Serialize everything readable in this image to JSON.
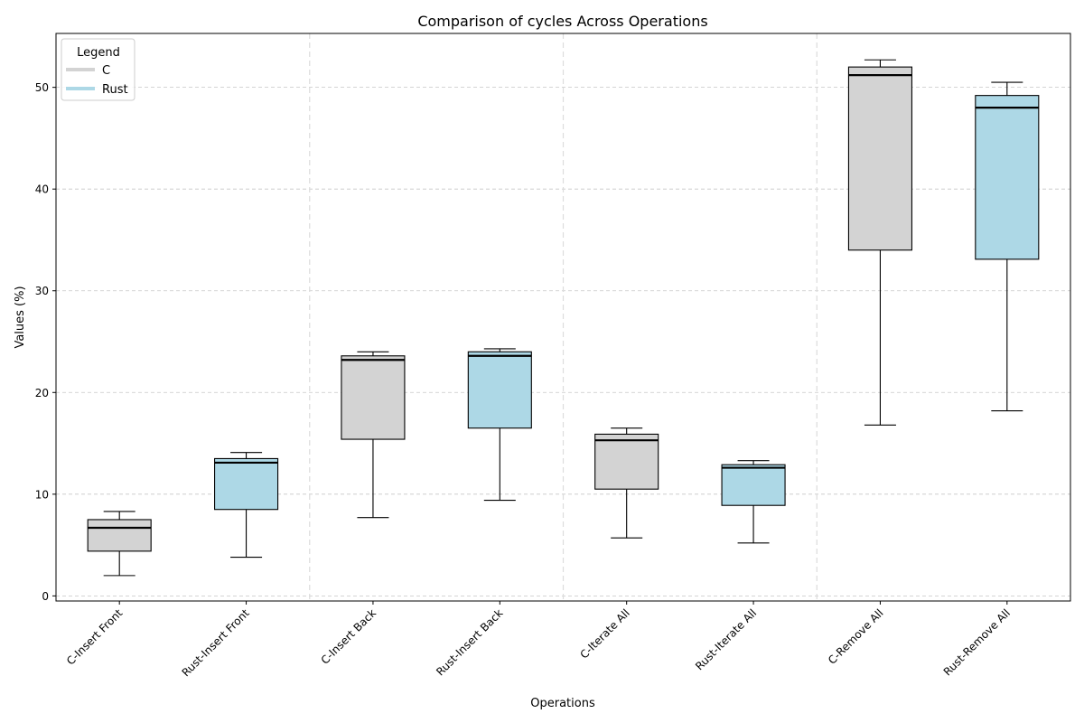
{
  "chart_data": {
    "type": "boxplot",
    "title": "Comparison of cycles Across Operations",
    "xlabel": "Operations",
    "ylabel": "Values (%)",
    "ylim": [
      -0.5,
      55.3
    ],
    "yticks": [
      0,
      10,
      20,
      30,
      40,
      50
    ],
    "grid": {
      "horizontal": true,
      "group_separators": true,
      "style": "dashed"
    },
    "legend": {
      "title": "Legend",
      "placement": "upper-left",
      "entries": [
        {
          "label": "C",
          "color": "#d3d3d3"
        },
        {
          "label": "Rust",
          "color": "#add8e6"
        }
      ]
    },
    "categories": [
      "C-Insert Front",
      "Rust-Insert Front",
      "C-Insert Back",
      "Rust-Insert Back",
      "C-Iterate All",
      "Rust-Iterate All",
      "C-Remove All",
      "Rust-Remove All"
    ],
    "boxes": [
      {
        "category": "C-Insert Front",
        "series": "C",
        "min": 2.0,
        "q1": 4.4,
        "median": 6.7,
        "q3": 7.5,
        "max": 8.3
      },
      {
        "category": "Rust-Insert Front",
        "series": "Rust",
        "min": 3.8,
        "q1": 8.5,
        "median": 13.1,
        "q3": 13.5,
        "max": 14.1
      },
      {
        "category": "C-Insert Back",
        "series": "C",
        "min": 7.7,
        "q1": 15.4,
        "median": 23.2,
        "q3": 23.6,
        "max": 24.0
      },
      {
        "category": "Rust-Insert Back",
        "series": "Rust",
        "min": 9.4,
        "q1": 16.5,
        "median": 23.6,
        "q3": 24.0,
        "max": 24.3
      },
      {
        "category": "C-Iterate All",
        "series": "C",
        "min": 5.7,
        "q1": 10.5,
        "median": 15.3,
        "q3": 15.9,
        "max": 16.5
      },
      {
        "category": "Rust-Iterate All",
        "series": "Rust",
        "min": 5.2,
        "q1": 8.9,
        "median": 12.6,
        "q3": 12.9,
        "max": 13.3
      },
      {
        "category": "C-Remove All",
        "series": "C",
        "min": 16.8,
        "q1": 34.0,
        "median": 51.2,
        "q3": 52.0,
        "max": 52.7
      },
      {
        "category": "Rust-Remove All",
        "series": "Rust",
        "min": 18.2,
        "q1": 33.1,
        "median": 48.0,
        "q3": 49.2,
        "max": 50.5
      }
    ],
    "colors": {
      "C": "#d3d3d3",
      "Rust": "#add8e6",
      "grid": "#c7c7c7",
      "separator": "#dcdcdc"
    }
  }
}
